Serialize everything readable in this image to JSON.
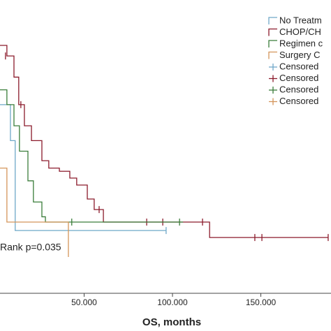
{
  "chart_data": {
    "type": "step",
    "xlabel": "OS, months",
    "annotation": "Rank p=0.035",
    "xlim": [
      2.4,
      189.7
    ],
    "ylim": [
      0,
      1
    ],
    "xticks": [
      {
        "value": 50,
        "label": "50.000"
      },
      {
        "value": 100,
        "label": "100.000"
      },
      {
        "value": 150,
        "label": "150.000"
      }
    ],
    "series": [
      {
        "name": "No Treatm",
        "color": "#6fa8c8",
        "x": [
          0,
          8.3,
          11,
          96.4
        ],
        "values": [
          0.72,
          0.55,
          0.125,
          0.125
        ],
        "censored": {
          "name": "Censored",
          "x": [
            96.4
          ],
          "values": [
            0.125
          ]
        }
      },
      {
        "name": "CHOP/CH",
        "color": "#8b1a2b",
        "x": [
          0,
          6.3,
          10.3,
          13.0,
          16.2,
          20.2,
          26.1,
          30.0,
          36.0,
          41.9,
          45.8,
          51.8,
          55.7,
          60.9,
          121,
          188.1
        ],
        "values": [
          1.0,
          0.95,
          0.85,
          0.72,
          0.62,
          0.55,
          0.455,
          0.42,
          0.405,
          0.373,
          0.34,
          0.274,
          0.224,
          0.165,
          0.092,
          0.092
        ],
        "censored": {
          "name": "Censored",
          "x": [
            5.5,
            14.2,
            58.5,
            85.4,
            94.5,
            117,
            146.6,
            150.6,
            188.1
          ],
          "values": [
            0.95,
            0.72,
            0.224,
            0.165,
            0.165,
            0.165,
            0.092,
            0.092,
            0.092
          ]
        }
      },
      {
        "name": "Regimen c",
        "color": "#3a7d3a",
        "x": [
          0,
          6.3,
          10.3,
          13.4,
          18.2,
          21.3,
          26.1,
          28.1,
          106
        ],
        "values": [
          0.79,
          0.72,
          0.62,
          0.5,
          0.36,
          0.26,
          0.19,
          0.165,
          0.165
        ],
        "censored": {
          "name": "Censored",
          "x": [
            43,
            104
          ],
          "values": [
            0.165,
            0.165
          ]
        }
      },
      {
        "name": "Surgery C",
        "color": "#d4955a",
        "x": [
          0,
          6.3,
          41.1
        ],
        "values": [
          0.42,
          0.165,
          0
        ],
        "censored": {
          "name": "Censored",
          "x": [],
          "values": []
        }
      }
    ]
  }
}
